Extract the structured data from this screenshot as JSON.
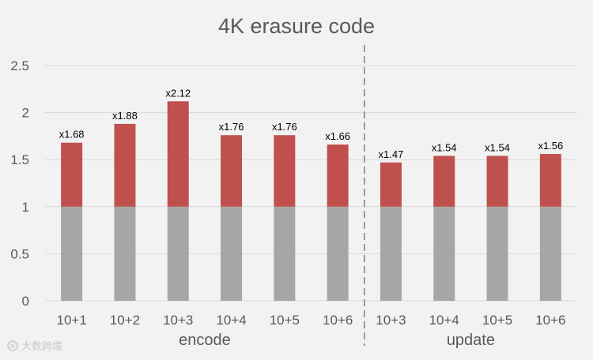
{
  "chart_data": {
    "type": "bar",
    "stacked": true,
    "title": "4K erasure code",
    "xlabel": "",
    "ylabel": "",
    "ylim": [
      0,
      2.5
    ],
    "yticks": [
      "0",
      "0.5",
      "1",
      "1.5",
      "2",
      "2.5"
    ],
    "grid": true,
    "legend": "none",
    "groups": [
      {
        "label": "encode",
        "start": 0,
        "count": 6
      },
      {
        "label": "update",
        "start": 6,
        "count": 4
      }
    ],
    "categories": [
      "10+1",
      "10+2",
      "10+3",
      "10+4",
      "10+5",
      "10+6",
      "10+3",
      "10+4",
      "10+5",
      "10+6"
    ],
    "series": [
      {
        "values": [
          1,
          1,
          1,
          1,
          1,
          1,
          1,
          1,
          1,
          1
        ],
        "color": "#a6a6a6"
      },
      {
        "values": [
          0.68,
          0.88,
          1.12,
          0.76,
          0.76,
          0.66,
          0.47,
          0.54,
          0.54,
          0.56
        ],
        "color": "#c0504d"
      }
    ],
    "totals": [
      1.68,
      1.88,
      2.12,
      1.76,
      1.76,
      1.66,
      1.47,
      1.54,
      1.54,
      1.56
    ],
    "data_labels": [
      "x1.68",
      "x1.88",
      "x2.12",
      "x1.76",
      "x1.76",
      "x1.66",
      "x1.47",
      "x1.54",
      "x1.54",
      "x1.56"
    ],
    "divider_after_index": 5
  },
  "watermark": {
    "text": "大数跨境",
    "icon": "logo-icon"
  },
  "colors": {
    "grid": "#d9d9d9",
    "text": "#595959",
    "divider": "#7f7f7f",
    "background": "#f2f2f2"
  }
}
